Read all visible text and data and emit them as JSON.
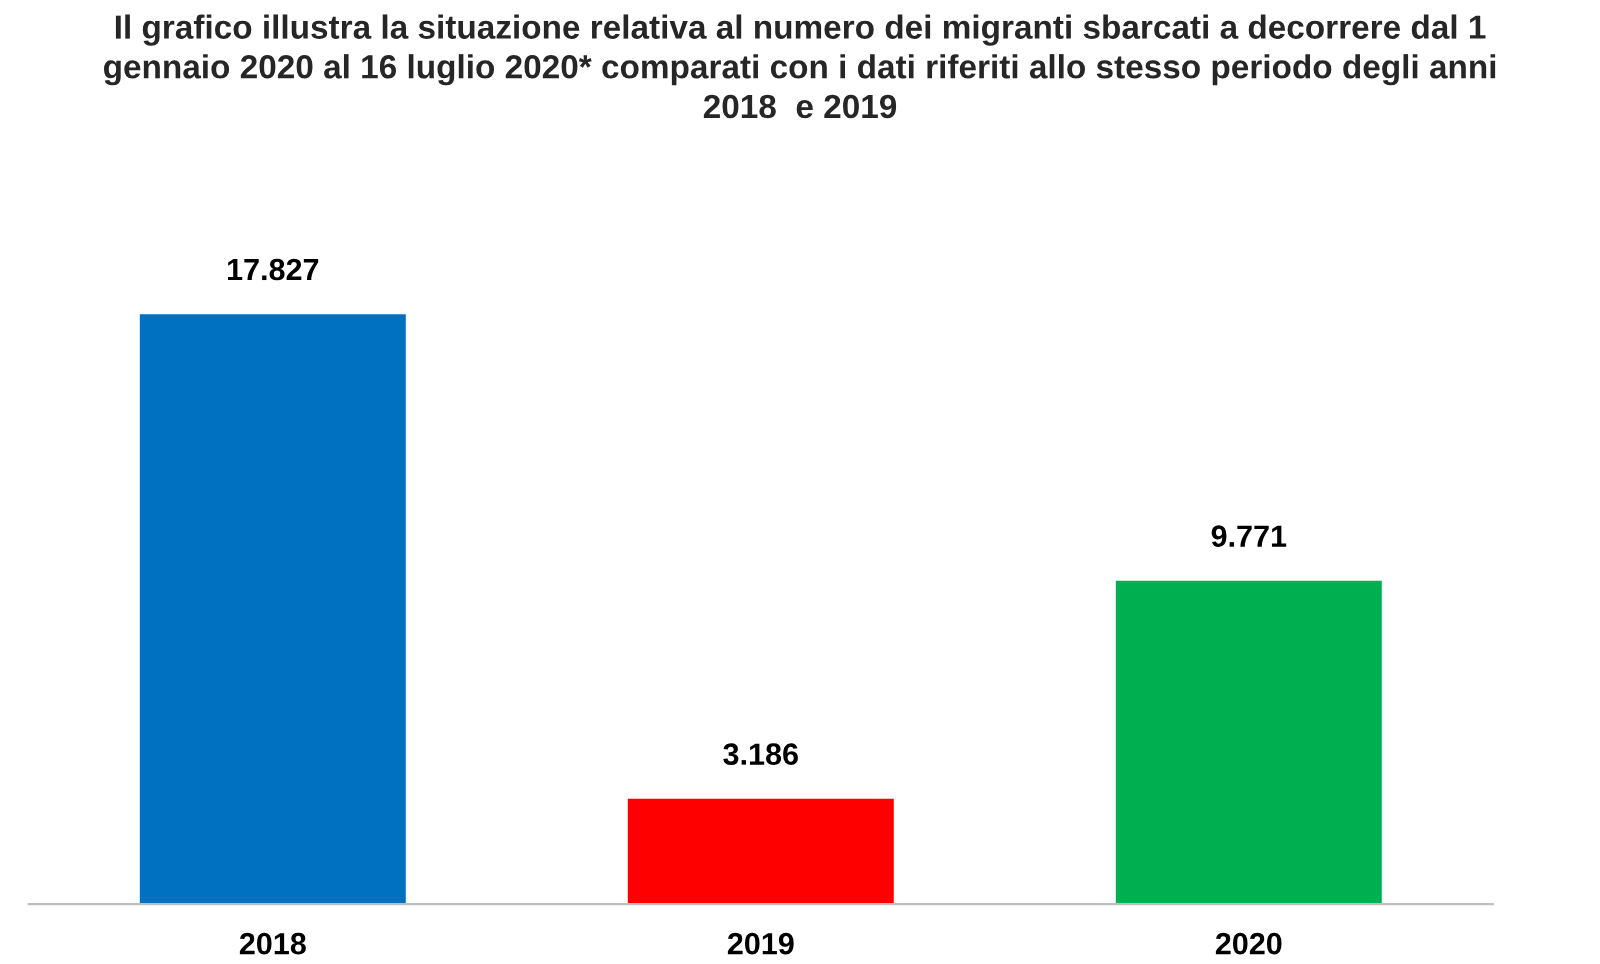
{
  "chart_data": {
    "type": "bar",
    "title": "Il grafico illustra la situazione relativa al numero dei migranti sbarcati a decorrere dal 1\ngennaio 2020 al 16 luglio 2020* comparati con i dati riferiti allo stesso periodo degli anni\n2018  e 2019",
    "categories": [
      "2018",
      "2019",
      "2020"
    ],
    "values": [
      17827,
      3186,
      9771
    ],
    "value_labels": [
      "17.827",
      "3.186",
      "9.771"
    ],
    "colors": [
      "#0070c0",
      "#ff0000",
      "#00b050"
    ],
    "grid": false,
    "legend": false
  }
}
